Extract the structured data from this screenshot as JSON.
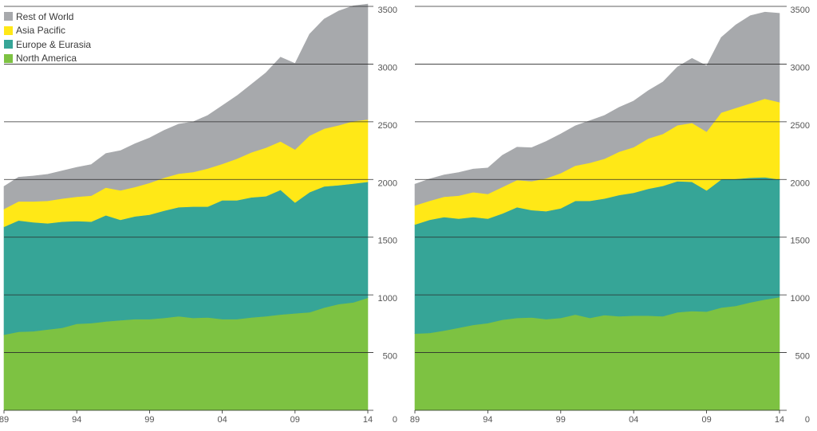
{
  "legend": [
    {
      "label": "Rest of World",
      "color": "#a7a9ac"
    },
    {
      "label": "Asia Pacific",
      "color": "#ffe817"
    },
    {
      "label": "Europe & Eurasia",
      "color": "#36a597"
    },
    {
      "label": "North America",
      "color": "#7dc242"
    }
  ],
  "chart_data": [
    {
      "type": "area",
      "stacked": true,
      "x": [
        1989,
        1990,
        1991,
        1992,
        1993,
        1994,
        1995,
        1996,
        1997,
        1998,
        1999,
        2000,
        2001,
        2002,
        2003,
        2004,
        2005,
        2006,
        2007,
        2008,
        2009,
        2010,
        2011,
        2012,
        2013,
        2014
      ],
      "x_tick_labels": [
        "89",
        "94",
        "99",
        "04",
        "09",
        "14"
      ],
      "y_tick_labels": [
        "0",
        "500",
        "1000",
        "1500",
        "2000",
        "2500",
        "3000",
        "3500"
      ],
      "ylim": [
        0,
        3500
      ],
      "grid": true,
      "y_axis_side": "right",
      "legend_position": "top-left",
      "series": [
        {
          "name": "North America",
          "color": "#7dc242",
          "values": [
            655,
            680,
            685,
            700,
            715,
            750,
            755,
            770,
            780,
            790,
            790,
            800,
            815,
            800,
            805,
            790,
            790,
            805,
            815,
            830,
            840,
            850,
            890,
            920,
            935,
            975
          ]
        },
        {
          "name": "Europe & Eurasia",
          "color": "#36a597",
          "values": [
            935,
            965,
            945,
            920,
            920,
            890,
            880,
            920,
            870,
            890,
            905,
            930,
            945,
            965,
            960,
            1030,
            1030,
            1040,
            1040,
            1080,
            960,
            1040,
            1050,
            1030,
            1030,
            1005
          ]
        },
        {
          "name": "Asia Pacific",
          "color": "#ffe817",
          "values": [
            155,
            165,
            180,
            195,
            200,
            210,
            225,
            240,
            255,
            255,
            275,
            285,
            290,
            300,
            330,
            315,
            360,
            390,
            420,
            420,
            460,
            490,
            500,
            520,
            540,
            540
          ]
        },
        {
          "name": "Rest of World",
          "color": "#a7a9ac",
          "values": [
            195,
            210,
            220,
            230,
            240,
            255,
            270,
            295,
            345,
            375,
            390,
            410,
            430,
            435,
            460,
            505,
            545,
            590,
            650,
            730,
            745,
            880,
            950,
            990,
            1000,
            1000
          ]
        }
      ]
    },
    {
      "type": "area",
      "stacked": true,
      "x": [
        1989,
        1990,
        1991,
        1992,
        1993,
        1994,
        1995,
        1996,
        1997,
        1998,
        1999,
        2000,
        2001,
        2002,
        2003,
        2004,
        2005,
        2006,
        2007,
        2008,
        2009,
        2010,
        2011,
        2012,
        2013,
        2014
      ],
      "x_tick_labels": [
        "89",
        "94",
        "99",
        "04",
        "09",
        "14"
      ],
      "y_tick_labels": [
        "0",
        "500",
        "1000",
        "1500",
        "2000",
        "2500",
        "3000",
        "3500"
      ],
      "ylim": [
        0,
        3500
      ],
      "grid": true,
      "y_axis_side": "right",
      "series": [
        {
          "name": "North America",
          "color": "#7dc242",
          "values": [
            665,
            670,
            690,
            715,
            740,
            755,
            785,
            800,
            805,
            790,
            800,
            830,
            800,
            825,
            815,
            820,
            820,
            815,
            850,
            860,
            855,
            890,
            905,
            935,
            960,
            980
          ]
        },
        {
          "name": "Europe & Eurasia",
          "color": "#36a597",
          "values": [
            945,
            980,
            985,
            945,
            935,
            905,
            920,
            960,
            930,
            935,
            950,
            985,
            1015,
            1010,
            1050,
            1065,
            1100,
            1130,
            1135,
            1120,
            1050,
            1110,
            1100,
            1080,
            1060,
            1020
          ]
        },
        {
          "name": "Asia Pacific",
          "color": "#ffe817",
          "values": [
            165,
            165,
            175,
            200,
            215,
            215,
            230,
            235,
            250,
            285,
            305,
            305,
            330,
            345,
            375,
            395,
            435,
            450,
            485,
            510,
            510,
            580,
            615,
            645,
            680,
            670
          ]
        },
        {
          "name": "Rest of World",
          "color": "#a7a9ac",
          "values": [
            185,
            190,
            190,
            200,
            200,
            225,
            275,
            285,
            290,
            320,
            340,
            345,
            365,
            375,
            385,
            400,
            415,
            450,
            505,
            560,
            570,
            650,
            720,
            760,
            750,
            770
          ]
        }
      ]
    }
  ]
}
